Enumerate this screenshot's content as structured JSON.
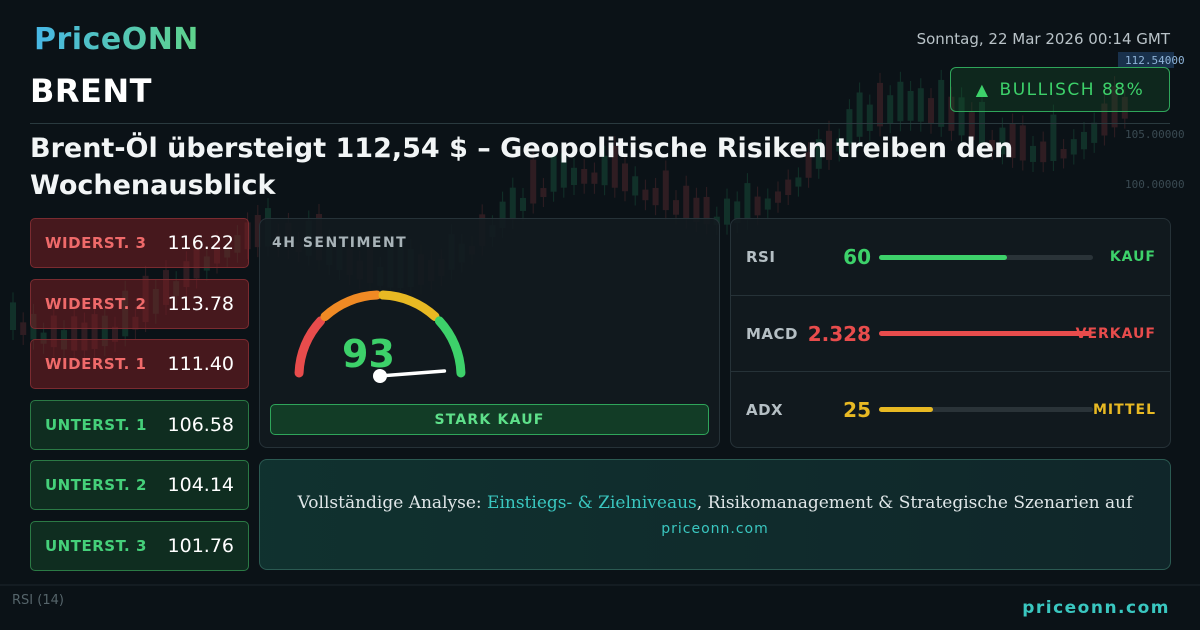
{
  "brand": {
    "logo": "PriceONN",
    "footer_url": "priceonn.com"
  },
  "header": {
    "datetime": "Sonntag, 22 Mar 2026 00:14 GMT",
    "symbol": "BRENT",
    "badge": {
      "label": "BULLISCH 88%",
      "color": "#3dd16a"
    },
    "headline": "Brent-Öl übersteigt 112,54 $ – Geopolitische Risiken treiben den Wochenausblick"
  },
  "levels": [
    {
      "type": "resistance",
      "label": "WIDERST. 3",
      "value": "116.22"
    },
    {
      "type": "resistance",
      "label": "WIDERST. 2",
      "value": "113.78"
    },
    {
      "type": "resistance",
      "label": "WIDERST. 1",
      "value": "111.40"
    },
    {
      "type": "support",
      "label": "UNTERST. 1",
      "value": "106.58"
    },
    {
      "type": "support",
      "label": "UNTERST. 2",
      "value": "104.14"
    },
    {
      "type": "support",
      "label": "UNTERST. 3",
      "value": "101.76"
    }
  ],
  "sentiment": {
    "title": "4H SENTIMENT",
    "score": "93",
    "score_value": 93,
    "signal": "STARK KAUF"
  },
  "indicators": [
    {
      "name": "RSI",
      "value": "60",
      "level": 0.6,
      "signal": "KAUF",
      "color": "#3dd16a"
    },
    {
      "name": "MACD",
      "value": "2.328",
      "level": 0.99,
      "signal": "VERKAUF",
      "color": "#e84c4c"
    },
    {
      "name": "ADX",
      "value": "25",
      "level": 0.25,
      "signal": "MITTEL",
      "color": "#e8b923"
    }
  ],
  "cta": {
    "prefix": "Vollständige Analyse: ",
    "highlight": "Einstiegs- & Zielniveaus",
    "suffix": ", Risikomanagement & Strategische Szenarien auf",
    "url": "priceonn.com"
  },
  "background": {
    "price_tag": "112.54000",
    "axis_labels": [
      "105.00000",
      "100.00000"
    ],
    "rsi_label": "RSI (14)"
  },
  "colors": {
    "accent": "#3ac7c0",
    "bull": "#3dd16a",
    "bear": "#e84c4c",
    "neutral": "#e8b923"
  }
}
